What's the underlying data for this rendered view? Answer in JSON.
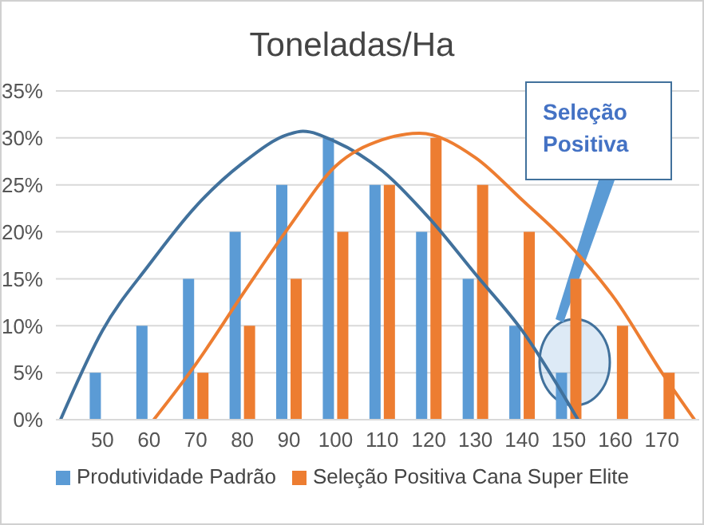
{
  "chart_data": {
    "type": "bar",
    "title": "Toneladas/Ha",
    "x": [
      50,
      60,
      70,
      80,
      90,
      100,
      110,
      120,
      130,
      140,
      150,
      160,
      170
    ],
    "series": [
      {
        "name": "Produtividade Padrão",
        "color": "#5b9bd5",
        "values": [
          5,
          10,
          15,
          20,
          25,
          30,
          25,
          20,
          15,
          10,
          5,
          null,
          null
        ]
      },
      {
        "name": "Seleção Positiva Cana Super Elite",
        "color": "#ed7d31",
        "values": [
          null,
          null,
          5,
          10,
          15,
          20,
          25,
          30,
          25,
          20,
          15,
          10,
          5
        ]
      },
      {
        "type": "line",
        "color": "#41719c",
        "x": [
          41,
          50,
          60,
          70,
          80,
          90,
          93,
          100,
          110,
          120,
          130,
          140,
          152
        ],
        "values": [
          0,
          9.5,
          16.5,
          22.7,
          27.3,
          30.4,
          30.7,
          29.6,
          26.5,
          21.5,
          15.5,
          9.5,
          0
        ]
      },
      {
        "type": "line",
        "color": "#ed7d31",
        "x": [
          61,
          70,
          80,
          90,
          100,
          110,
          118,
          130,
          140,
          150,
          160,
          170,
          177
        ],
        "values": [
          0,
          5.9,
          13.3,
          20.5,
          27,
          29.8,
          30.5,
          27.9,
          23.4,
          18.7,
          12.8,
          5,
          0
        ]
      }
    ],
    "xlim": [
      40,
      178
    ],
    "xticks": [
      50,
      60,
      70,
      80,
      90,
      100,
      110,
      120,
      130,
      140,
      150,
      160,
      170
    ],
    "ylim": [
      0,
      35
    ],
    "yticks": [
      {
        "value": 0,
        "label": "0%"
      },
      {
        "value": 5,
        "label": "5%"
      },
      {
        "value": 10,
        "label": "10%"
      },
      {
        "value": 15,
        "label": "15%"
      },
      {
        "value": 20,
        "label": "20%"
      },
      {
        "value": 25,
        "label": "25%"
      },
      {
        "value": 30,
        "label": "30%"
      },
      {
        "value": 35,
        "label": "35%"
      }
    ],
    "grid": "y",
    "legend": "bottom",
    "annotations": [
      "Seleção Positiva"
    ]
  }
}
